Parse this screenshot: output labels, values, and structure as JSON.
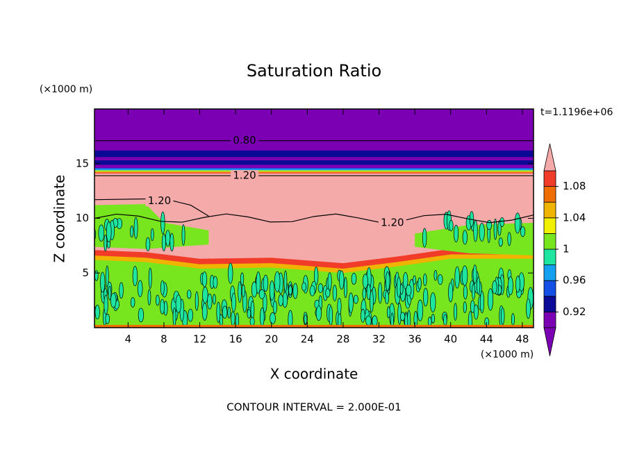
{
  "chart_data": {
    "type": "contour",
    "title": "Saturation Ratio",
    "x_label": "X coordinate",
    "y_label": "Z coordinate",
    "x_unit": "(×1000 m)",
    "y_unit": "(×1000 m)",
    "time_label": "t=1.1196e+06",
    "footer": "CONTOUR INTERVAL = 2.000E-01",
    "xlim": [
      0.25,
      49.25
    ],
    "xticks": [
      4,
      8,
      12,
      16,
      20,
      24,
      28,
      32,
      36,
      40,
      44,
      48
    ],
    "ylim": [
      0,
      20
    ],
    "yticks": [
      5,
      10,
      15
    ],
    "contour_labels": [
      "0.80",
      "1.20",
      "1.20",
      "1.20"
    ],
    "colorbar": {
      "levels": [
        0.9,
        0.92,
        0.94,
        0.96,
        0.98,
        1,
        1.02,
        1.04,
        1.06,
        1.08,
        1.1
      ],
      "ticks": [
        0.92,
        0.96,
        1,
        1.04,
        1.08
      ],
      "colors": [
        "#7b00b4",
        "#0a0a96",
        "#1450e6",
        "#14a0f0",
        "#1ee6a0",
        "#78e61e",
        "#f0f000",
        "#f0b400",
        "#f06e00",
        "#f03c28"
      ],
      "extend_colors": [
        "#7b00b4",
        "#f5aaaa"
      ]
    }
  }
}
